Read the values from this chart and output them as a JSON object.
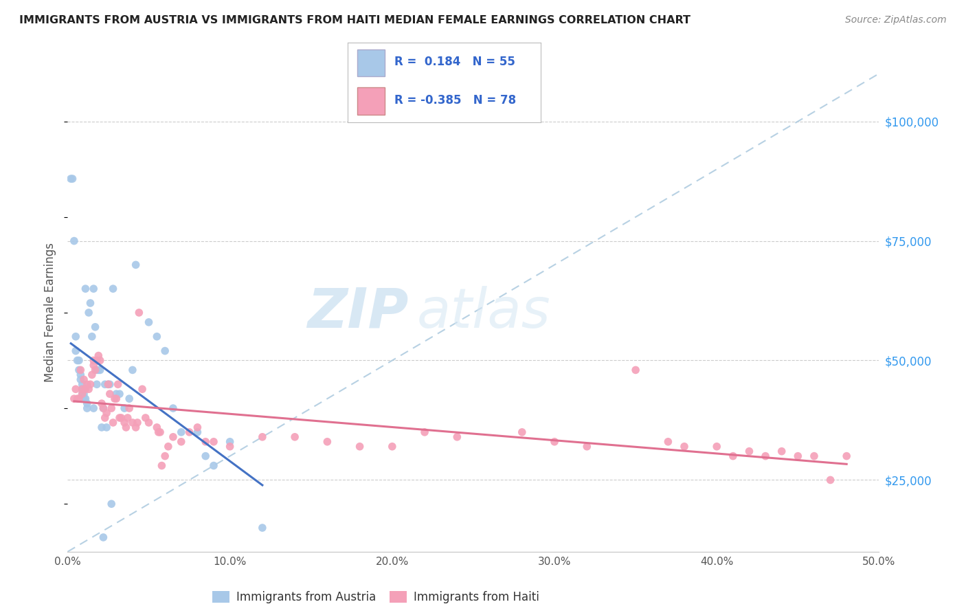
{
  "title": "IMMIGRANTS FROM AUSTRIA VS IMMIGRANTS FROM HAITI MEDIAN FEMALE EARNINGS CORRELATION CHART",
  "source": "Source: ZipAtlas.com",
  "ylabel": "Median Female Earnings",
  "xlim": [
    0.0,
    0.5
  ],
  "ylim": [
    10000,
    110000
  ],
  "yticks": [
    25000,
    50000,
    75000,
    100000
  ],
  "ytick_labels": [
    "$25,000",
    "$50,000",
    "$75,000",
    "$100,000"
  ],
  "xticks": [
    0.0,
    0.1,
    0.2,
    0.3,
    0.4,
    0.5
  ],
  "xtick_labels": [
    "0.0%",
    "10.0%",
    "20.0%",
    "30.0%",
    "40.0%",
    "50.0%"
  ],
  "austria_color": "#a8c8e8",
  "haiti_color": "#f4a0b8",
  "austria_line_color": "#4472c4",
  "haiti_line_color": "#e07090",
  "dashed_line_color": "#b0cce0",
  "R_austria": 0.184,
  "N_austria": 55,
  "R_haiti": -0.385,
  "N_haiti": 78,
  "legend_label_austria": "Immigrants from Austria",
  "legend_label_haiti": "Immigrants from Haiti",
  "watermark_zip": "ZIP",
  "watermark_atlas": "atlas",
  "austria_x": [
    0.002,
    0.003,
    0.004,
    0.005,
    0.005,
    0.006,
    0.007,
    0.007,
    0.008,
    0.008,
    0.009,
    0.009,
    0.009,
    0.01,
    0.01,
    0.01,
    0.011,
    0.011,
    0.012,
    0.012,
    0.013,
    0.014,
    0.015,
    0.016,
    0.016,
    0.017,
    0.018,
    0.018,
    0.019,
    0.02,
    0.021,
    0.022,
    0.022,
    0.023,
    0.024,
    0.025,
    0.026,
    0.027,
    0.028,
    0.03,
    0.032,
    0.035,
    0.038,
    0.04,
    0.042,
    0.05,
    0.055,
    0.06,
    0.065,
    0.07,
    0.08,
    0.085,
    0.09,
    0.1,
    0.12
  ],
  "austria_y": [
    88000,
    88000,
    75000,
    52000,
    55000,
    50000,
    48000,
    50000,
    46000,
    47000,
    45000,
    44000,
    43000,
    44000,
    43000,
    42000,
    42000,
    65000,
    40000,
    41000,
    60000,
    62000,
    55000,
    40000,
    65000,
    57000,
    45000,
    48000,
    48000,
    48000,
    36000,
    13000,
    40000,
    45000,
    36000,
    45000,
    45000,
    20000,
    65000,
    43000,
    43000,
    40000,
    42000,
    48000,
    70000,
    58000,
    55000,
    52000,
    40000,
    35000,
    35000,
    30000,
    28000,
    33000,
    15000
  ],
  "haiti_x": [
    0.004,
    0.005,
    0.006,
    0.007,
    0.008,
    0.009,
    0.009,
    0.01,
    0.011,
    0.012,
    0.013,
    0.014,
    0.015,
    0.016,
    0.016,
    0.017,
    0.018,
    0.019,
    0.02,
    0.021,
    0.022,
    0.023,
    0.024,
    0.025,
    0.026,
    0.027,
    0.028,
    0.029,
    0.03,
    0.031,
    0.032,
    0.033,
    0.035,
    0.036,
    0.037,
    0.038,
    0.04,
    0.042,
    0.043,
    0.044,
    0.046,
    0.048,
    0.05,
    0.055,
    0.056,
    0.057,
    0.058,
    0.06,
    0.062,
    0.065,
    0.07,
    0.075,
    0.08,
    0.085,
    0.09,
    0.1,
    0.12,
    0.14,
    0.16,
    0.18,
    0.2,
    0.22,
    0.24,
    0.28,
    0.3,
    0.32,
    0.35,
    0.37,
    0.38,
    0.4,
    0.42,
    0.44,
    0.46,
    0.48,
    0.45,
    0.43,
    0.41,
    0.47
  ],
  "haiti_y": [
    42000,
    44000,
    42000,
    42000,
    48000,
    43000,
    44000,
    46000,
    44000,
    45000,
    44000,
    45000,
    47000,
    49000,
    50000,
    48000,
    50000,
    51000,
    50000,
    41000,
    40000,
    38000,
    39000,
    45000,
    43000,
    40000,
    37000,
    42000,
    42000,
    45000,
    38000,
    38000,
    37000,
    36000,
    38000,
    40000,
    37000,
    36000,
    37000,
    60000,
    44000,
    38000,
    37000,
    36000,
    35000,
    35000,
    28000,
    30000,
    32000,
    34000,
    33000,
    35000,
    36000,
    33000,
    33000,
    32000,
    34000,
    34000,
    33000,
    32000,
    32000,
    35000,
    34000,
    35000,
    33000,
    32000,
    48000,
    33000,
    32000,
    32000,
    31000,
    31000,
    30000,
    30000,
    30000,
    30000,
    30000,
    25000
  ]
}
